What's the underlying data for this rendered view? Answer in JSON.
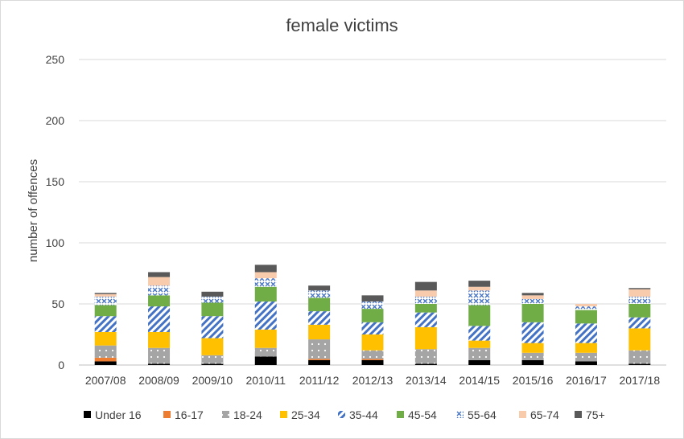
{
  "chart_data": {
    "type": "bar",
    "stacked": true,
    "title": "female victims",
    "xlabel": "",
    "ylabel": "number of offences",
    "ylim": [
      0,
      250
    ],
    "yticks": [
      0,
      50,
      100,
      150,
      200,
      250
    ],
    "grid": true,
    "legend_position": "bottom",
    "categories": [
      "2007/08",
      "2008/09",
      "2009/10",
      "2010/11",
      "2011/12",
      "2012/13",
      "2013/14",
      "2014/15",
      "2015/16",
      "2016/17",
      "2017/18"
    ],
    "series": [
      {
        "name": "Under 16",
        "color": "#000000",
        "pattern": "solid",
        "values": [
          3,
          1,
          1,
          7,
          4,
          4,
          1,
          4,
          4,
          3,
          1
        ]
      },
      {
        "name": "16-17",
        "color": "#ed7d31",
        "pattern": "solid",
        "values": [
          3,
          0,
          0,
          0,
          1,
          1,
          0,
          0,
          0,
          0,
          0
        ]
      },
      {
        "name": "18-24",
        "color": "#a5a5a5",
        "pattern": "dots",
        "values": [
          10,
          13,
          7,
          7,
          16,
          7,
          12,
          10,
          6,
          7,
          11
        ]
      },
      {
        "name": "25-34",
        "color": "#ffc000",
        "pattern": "solid",
        "values": [
          11,
          13,
          14,
          15,
          12,
          13,
          18,
          6,
          8,
          8,
          18
        ]
      },
      {
        "name": "35-44",
        "color": "#4472c4",
        "pattern": "diagonal",
        "values": [
          13,
          21,
          18,
          23,
          11,
          10,
          12,
          12,
          17,
          16,
          9
        ]
      },
      {
        "name": "45-54",
        "color": "#70ad47",
        "pattern": "solid",
        "values": [
          9,
          9,
          11,
          12,
          11,
          11,
          7,
          17,
          15,
          11,
          11
        ]
      },
      {
        "name": "55-64",
        "color": "#4472c4",
        "pattern": "cross",
        "values": [
          7,
          8,
          5,
          7,
          6,
          6,
          6,
          12,
          4,
          3,
          6
        ]
      },
      {
        "name": "65-74",
        "color": "#f8cbad",
        "pattern": "solid",
        "values": [
          2,
          7,
          0,
          5,
          0,
          0,
          5,
          3,
          3,
          2,
          6
        ]
      },
      {
        "name": "75+",
        "color": "#595959",
        "pattern": "solid",
        "values": [
          1,
          4,
          4,
          6,
          4,
          5,
          7,
          5,
          2,
          0,
          1
        ]
      }
    ]
  }
}
